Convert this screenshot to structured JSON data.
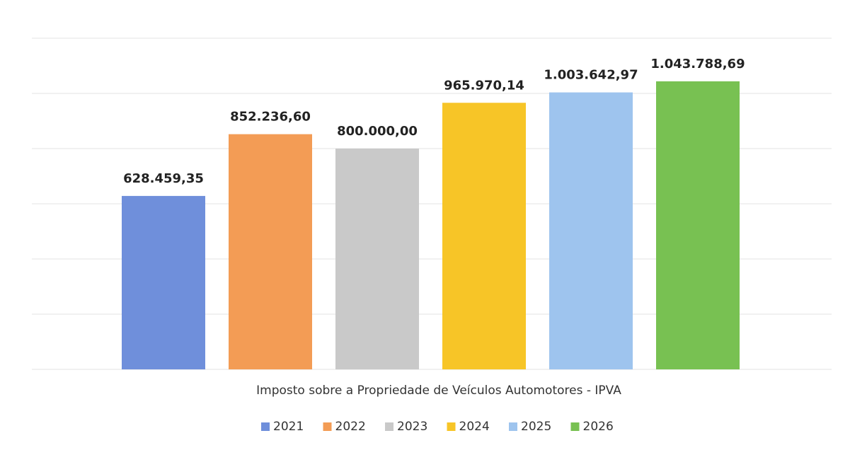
{
  "chart_data": {
    "type": "bar",
    "x_label": "Imposto sobre a Propriedade de Veículos Automotores - IPVA",
    "categories": [
      null
    ],
    "series": [
      {
        "name": "2021",
        "color": "#6f8fdb",
        "values": [
          628459.35
        ],
        "value_labels": [
          "628.459,35"
        ]
      },
      {
        "name": "2022",
        "color": "#f39c55",
        "values": [
          852236.6
        ],
        "value_labels": [
          "852.236,60"
        ]
      },
      {
        "name": "2023",
        "color": "#c9c9c9",
        "values": [
          800000.0
        ],
        "value_labels": [
          "800.000,00"
        ]
      },
      {
        "name": "2024",
        "color": "#f7c527",
        "values": [
          965970.14
        ],
        "value_labels": [
          "965.970,14"
        ]
      },
      {
        "name": "2025",
        "color": "#9ec4ee",
        "values": [
          1003642.97
        ],
        "value_labels": [
          "1.003.642,97"
        ]
      },
      {
        "name": "2026",
        "color": "#78c152",
        "values": [
          1043788.69
        ],
        "value_labels": [
          "1.043.788,69"
        ]
      }
    ],
    "ylim": [
      0,
      1200000
    ],
    "yticks": [
      0,
      200000,
      400000,
      600000,
      800000,
      1000000,
      1200000
    ],
    "grid": true,
    "legend": "bottom"
  }
}
